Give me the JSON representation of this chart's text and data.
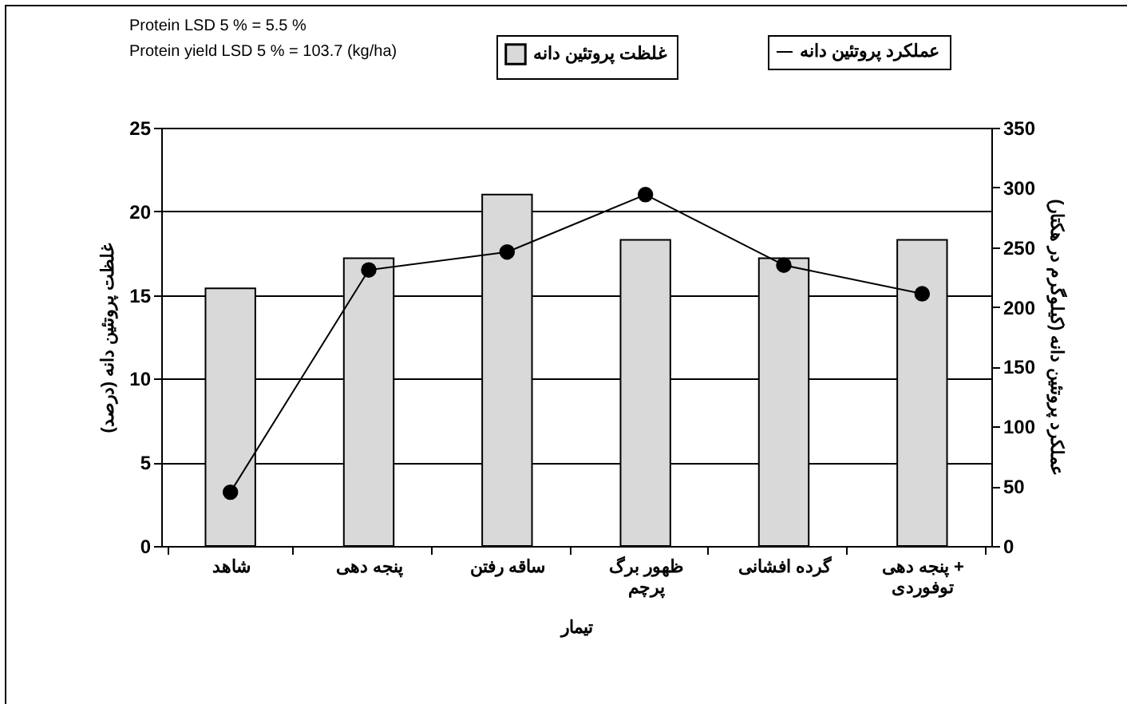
{
  "chart_data": {
    "type": "bar",
    "categories": [
      "شاهد",
      "پنجه دهی",
      "ساقه رفتن",
      "ظهور برگ پرچم",
      "گرده افشانی",
      "پنجه دهی + توفوردی"
    ],
    "series": [
      {
        "name": "غلظت پروتئین دانه",
        "color": "#d9d9d9",
        "values": [
          15.4,
          17.2,
          21.0,
          18.3,
          17.2,
          18.3
        ]
      },
      {
        "name": "عملکرد پروتئین دانه",
        "type": "line",
        "axis": "y2",
        "color": "#000000",
        "values": [
          45,
          231,
          246,
          294,
          235,
          211
        ]
      }
    ],
    "xlabel": "تیمار",
    "ylabel": "غلظت پروتئین دانه (درصد)",
    "y2label": "عملکرد پروتئین دانه (کیلوگرم در هکتار)",
    "ylim": [
      0,
      25
    ],
    "yticks": [
      0,
      5,
      10,
      15,
      20,
      25
    ],
    "y2lim": [
      0,
      350
    ],
    "y2ticks": [
      0,
      50,
      100,
      150,
      200,
      250,
      300,
      350
    ],
    "annotations": [
      "Protein LSD   5 % =  5.5 %",
      "Protein yield LSD     5 % =  103.7   (kg/ha)"
    ],
    "grid": "y",
    "legend": "top right",
    "marker": "circle"
  }
}
